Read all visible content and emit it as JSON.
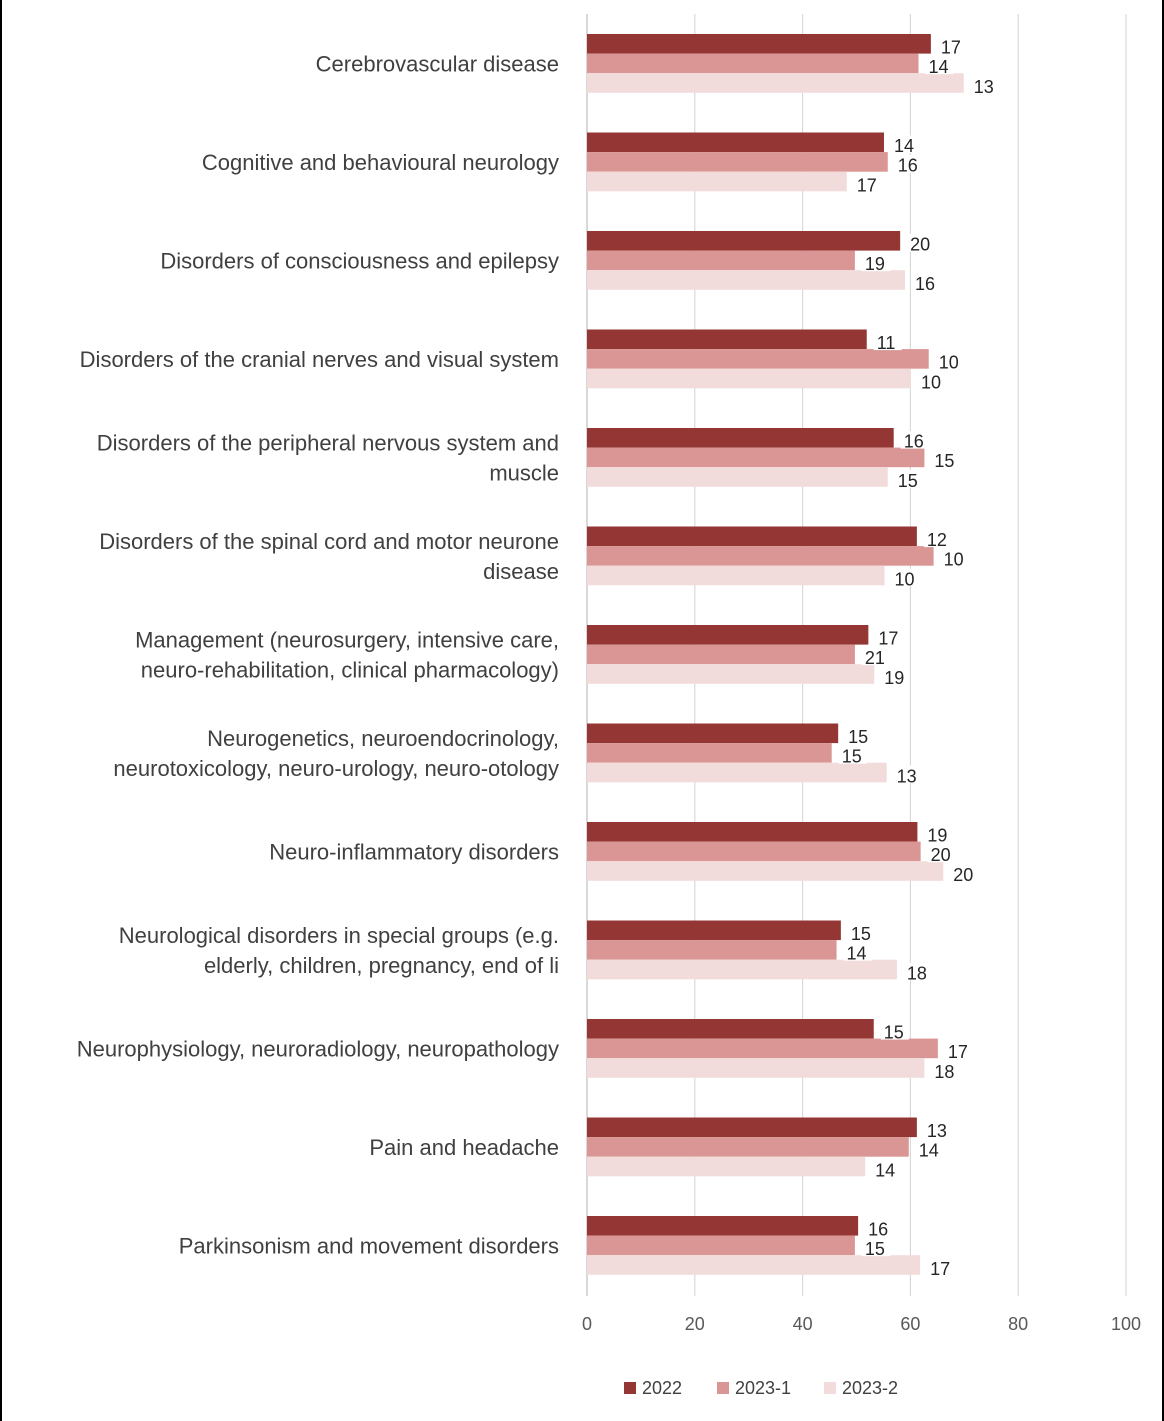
{
  "chart_data": {
    "type": "bar",
    "orientation": "horizontal",
    "categories": [
      "Cerebrovascular disease",
      "Cognitive and behavioural neurology",
      "Disorders of consciousness and epilepsy",
      "Disorders of the cranial nerves and visual system",
      [
        "Disorders of the peripheral nervous system and",
        "muscle"
      ],
      [
        "Disorders of the spinal cord and motor neurone",
        "disease"
      ],
      [
        "Management (neurosurgery, intensive care,",
        "neuro-rehabilitation, clinical pharmacology)"
      ],
      [
        "Neurogenetics, neuroendocrinology,",
        "neurotoxicology, neuro-urology, neuro-otology"
      ],
      "Neuro-inflammatory disorders",
      [
        "Neurological disorders in special groups (e.g.",
        "elderly, children, pregnancy, end of li"
      ],
      "Neurophysiology, neuroradiology, neuropathology",
      "Pain and headache",
      "Parkinsonism and movement disorders"
    ],
    "series": [
      {
        "name": "2022",
        "color": "#943634",
        "values": [
          63.8,
          55.1,
          58.1,
          51.9,
          56.9,
          61.2,
          52.2,
          46.6,
          61.3,
          47.1,
          53.2,
          61.2,
          50.3
        ],
        "labels": [
          "17",
          "14",
          "20",
          "11",
          "16",
          "12",
          "17",
          "15",
          "19",
          "15",
          "15",
          "13",
          "16"
        ]
      },
      {
        "name": "2023-1",
        "color": "#d99694",
        "values": [
          61.5,
          55.8,
          49.7,
          63.4,
          62.6,
          64.3,
          49.7,
          45.4,
          61.9,
          46.3,
          65.1,
          59.7,
          49.7
        ],
        "labels": [
          "14",
          "16",
          "19",
          "10",
          "15",
          "10",
          "21",
          "15",
          "20",
          "14",
          "17",
          "14",
          "15"
        ]
      },
      {
        "name": "2023-2",
        "color": "#f2dcdb",
        "values": [
          69.9,
          48.2,
          59.0,
          60.1,
          55.8,
          55.2,
          53.3,
          55.6,
          66.1,
          57.5,
          62.6,
          51.6,
          61.8
        ],
        "labels": [
          "13",
          "17",
          "16",
          "10",
          "15",
          "10",
          "19",
          "13",
          "20",
          "18",
          "18",
          "14",
          "17"
        ]
      }
    ],
    "xlim": [
      0,
      100
    ],
    "xticks": [
      "0",
      "20",
      "40",
      "60",
      "80",
      "100"
    ],
    "grid": true,
    "legend_position": "bottom"
  }
}
